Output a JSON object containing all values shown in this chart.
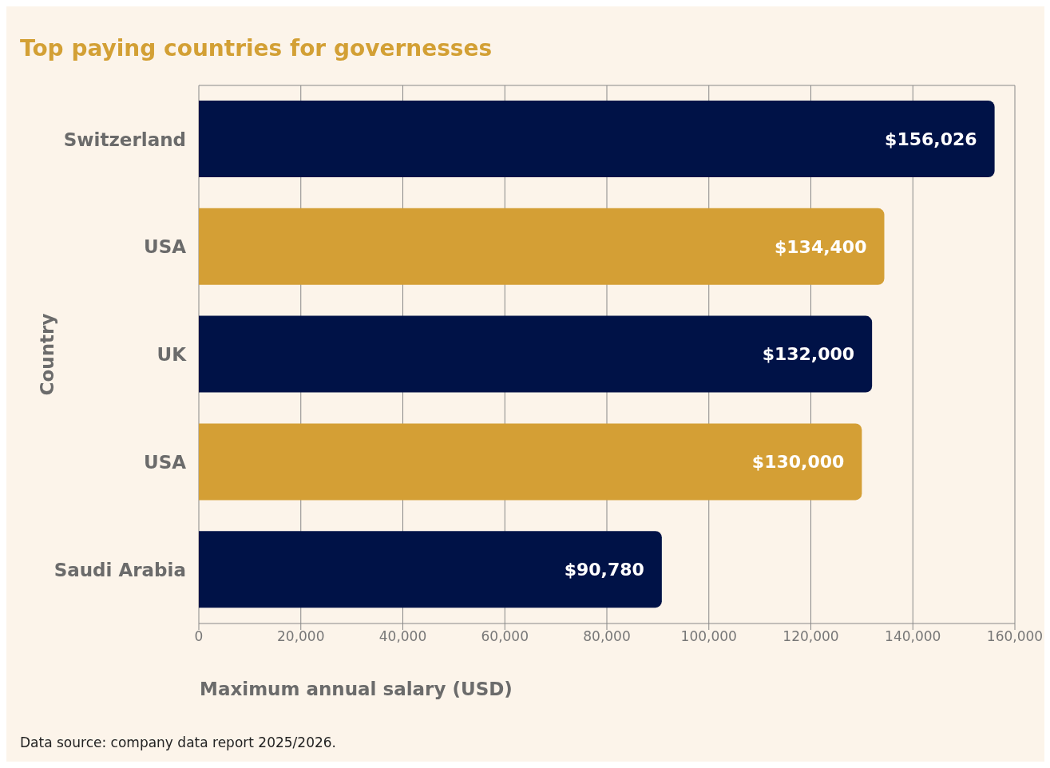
{
  "chart_data": {
    "type": "bar",
    "orientation": "horizontal",
    "title": "Top paying countries for governesses",
    "xlabel": "Maximum annual salary (USD)",
    "ylabel": "Country",
    "categories": [
      "Switzerland",
      "USA",
      "UK",
      "USA",
      "Saudi Arabia"
    ],
    "values": [
      156026,
      134400,
      132000,
      130000,
      90780
    ],
    "colors": [
      "#001247",
      "#d49f35",
      "#001247",
      "#d49f35",
      "#001247"
    ],
    "value_labels": [
      "$156,026",
      "$134,400",
      "$132,000",
      "$130,000",
      "$90,780"
    ],
    "xlim": [
      0,
      160000
    ],
    "xticks": [
      0,
      {
        "value": 20000,
        "label": "20,000"
      },
      {
        "value": 40000,
        "label": "40,000"
      },
      {
        "value": 60000,
        "label": "60,000"
      },
      {
        "value": 80000,
        "label": "80,000"
      },
      {
        "value": 100000,
        "label": "100,000"
      },
      {
        "value": 120000,
        "label": "120,000"
      },
      {
        "value": 140000,
        "label": "140,000"
      },
      {
        "value": 160000,
        "label": "160,000"
      }
    ],
    "grid": "x",
    "annotations": [
      "Data source: company data report 2025/2026."
    ]
  }
}
